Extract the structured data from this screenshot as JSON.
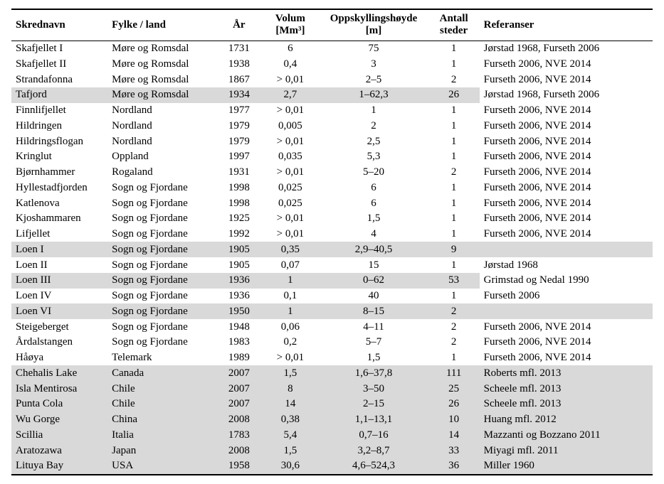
{
  "table": {
    "columns": [
      {
        "key": "name",
        "label": "Skrednavn",
        "sub": "",
        "align": "left",
        "width": "15%"
      },
      {
        "key": "fylke",
        "label": "Fylke / land",
        "sub": "",
        "align": "left",
        "width": "17%"
      },
      {
        "key": "year",
        "label": "År",
        "sub": "",
        "align": "center",
        "width": "7%"
      },
      {
        "key": "vol",
        "label": "Volum",
        "sub": "[Mm³]",
        "align": "center",
        "width": "9%"
      },
      {
        "key": "opp",
        "label": "Oppskyllingshøyde",
        "sub": "[m]",
        "align": "center",
        "width": "17%"
      },
      {
        "key": "ant",
        "label": "Antall",
        "sub": "steder",
        "align": "center",
        "width": "8%"
      },
      {
        "key": "ref",
        "label": "Referanser",
        "sub": "",
        "align": "left",
        "width": "27%"
      }
    ],
    "rows": [
      {
        "name": "Skafjellet I",
        "fylke": "Møre og Romsdal",
        "year": "1731",
        "vol": "6",
        "opp": "75",
        "ant": "1",
        "ref": "Jørstad 1968, Furseth 2006",
        "hl": false,
        "hlref": false
      },
      {
        "name": "Skafjellet II",
        "fylke": "Møre og Romsdal",
        "year": "1938",
        "vol": "0,4",
        "opp": "3",
        "ant": "1",
        "ref": "Furseth 2006, NVE 2014",
        "hl": false,
        "hlref": false
      },
      {
        "name": "Strandafonna",
        "fylke": "Møre og Romsdal",
        "year": "1867",
        "vol": "> 0,01",
        "opp": "2–5",
        "ant": "2",
        "ref": "Furseth 2006, NVE 2014",
        "hl": false,
        "hlref": false
      },
      {
        "name": "Tafjord",
        "fylke": "Møre og Romsdal",
        "year": "1934",
        "vol": "2,7",
        "opp": "1–62,3",
        "ant": "26",
        "ref": "Jørstad 1968, Furseth 2006",
        "hl": true,
        "hlref": false
      },
      {
        "name": "Finnlifjellet",
        "fylke": "Nordland",
        "year": "1977",
        "vol": "> 0,01",
        "opp": "1",
        "ant": "1",
        "ref": "Furseth 2006, NVE 2014",
        "hl": false,
        "hlref": false
      },
      {
        "name": "Hildringen",
        "fylke": "Nordland",
        "year": "1979",
        "vol": "0,005",
        "opp": "2",
        "ant": "1",
        "ref": "Furseth 2006, NVE 2014",
        "hl": false,
        "hlref": false
      },
      {
        "name": "Hildringsflogan",
        "fylke": "Nordland",
        "year": "1979",
        "vol": "> 0,01",
        "opp": "2,5",
        "ant": "1",
        "ref": "Furseth 2006, NVE 2014",
        "hl": false,
        "hlref": false
      },
      {
        "name": "Kringlut",
        "fylke": "Oppland",
        "year": "1997",
        "vol": "0,035",
        "opp": "5,3",
        "ant": "1",
        "ref": "Furseth 2006, NVE 2014",
        "hl": false,
        "hlref": false
      },
      {
        "name": "Bjørnhammer",
        "fylke": "Rogaland",
        "year": "1931",
        "vol": "> 0,01",
        "opp": "5–20",
        "ant": "2",
        "ref": "Furseth 2006, NVE 2014",
        "hl": false,
        "hlref": false
      },
      {
        "name": "Hyllestadfjorden",
        "fylke": "Sogn og Fjordane",
        "year": "1998",
        "vol": "0,025",
        "opp": "6",
        "ant": "1",
        "ref": "Furseth 2006, NVE 2014",
        "hl": false,
        "hlref": false
      },
      {
        "name": "Katlenova",
        "fylke": "Sogn og Fjordane",
        "year": "1998",
        "vol": "0,025",
        "opp": "6",
        "ant": "1",
        "ref": "Furseth 2006, NVE 2014",
        "hl": false,
        "hlref": false
      },
      {
        "name": "Kjoshammaren",
        "fylke": "Sogn og Fjordane",
        "year": "1925",
        "vol": "> 0,01",
        "opp": "1,5",
        "ant": "1",
        "ref": "Furseth 2006, NVE 2014",
        "hl": false,
        "hlref": false
      },
      {
        "name": "Lifjellet",
        "fylke": "Sogn og Fjordane",
        "year": "1992",
        "vol": "> 0,01",
        "opp": "4",
        "ant": "1",
        "ref": "Furseth 2006, NVE 2014",
        "hl": false,
        "hlref": false
      },
      {
        "name": "Loen I",
        "fylke": "Sogn og Fjordane",
        "year": "1905",
        "vol": "0,35",
        "opp": "2,9–40,5",
        "ant": "9",
        "ref": "",
        "hl": true,
        "hlref": true
      },
      {
        "name": "Loen II",
        "fylke": "Sogn og Fjordane",
        "year": "1905",
        "vol": "0,07",
        "opp": "15",
        "ant": "1",
        "ref": "Jørstad 1968",
        "hl": false,
        "hlref": false
      },
      {
        "name": "Loen III",
        "fylke": "Sogn og Fjordane",
        "year": "1936",
        "vol": "1",
        "opp": "0–62",
        "ant": "53",
        "ref": "Grimstad og Nedal 1990",
        "hl": true,
        "hlref": false
      },
      {
        "name": "Loen IV",
        "fylke": "Sogn og Fjordane",
        "year": "1936",
        "vol": "0,1",
        "opp": "40",
        "ant": "1",
        "ref": "Furseth 2006",
        "hl": false,
        "hlref": false
      },
      {
        "name": "Loen VI",
        "fylke": "Sogn og Fjordane",
        "year": "1950",
        "vol": "1",
        "opp": "8–15",
        "ant": "2",
        "ref": "",
        "hl": true,
        "hlref": true
      },
      {
        "name": "Steigeberget",
        "fylke": "Sogn og Fjordane",
        "year": "1948",
        "vol": "0,06",
        "opp": "4–11",
        "ant": "2",
        "ref": "Furseth 2006, NVE 2014",
        "hl": false,
        "hlref": false
      },
      {
        "name": "Årdalstangen",
        "fylke": "Sogn og Fjordane",
        "year": "1983",
        "vol": "0,2",
        "opp": "5–7",
        "ant": "2",
        "ref": "Furseth 2006, NVE 2014",
        "hl": false,
        "hlref": false
      },
      {
        "name": "Håøya",
        "fylke": "Telemark",
        "year": "1989",
        "vol": "> 0,01",
        "opp": "1,5",
        "ant": "1",
        "ref": "Furseth 2006, NVE 2014",
        "hl": false,
        "hlref": false
      },
      {
        "name": "Chehalis Lake",
        "fylke": "Canada",
        "year": "2007",
        "vol": "1,5",
        "opp": "1,6–37,8",
        "ant": "111",
        "ref": "Roberts mfl. 2013",
        "hl": true,
        "hlref": true
      },
      {
        "name": "Isla Mentirosa",
        "fylke": "Chile",
        "year": "2007",
        "vol": "8",
        "opp": "3–50",
        "ant": "25",
        "ref": "Scheele mfl. 2013",
        "hl": true,
        "hlref": true
      },
      {
        "name": "Punta Cola",
        "fylke": "Chile",
        "year": "2007",
        "vol": "14",
        "opp": "2–15",
        "ant": "26",
        "ref": "Scheele mfl. 2013",
        "hl": true,
        "hlref": true
      },
      {
        "name": "Wu Gorge",
        "fylke": "China",
        "year": "2008",
        "vol": "0,38",
        "opp": "1,1–13,1",
        "ant": "10",
        "ref": "Huang mfl. 2012",
        "hl": true,
        "hlref": true
      },
      {
        "name": "Scillia",
        "fylke": "Italia",
        "year": "1783",
        "vol": "5,4",
        "opp": "0,7–16",
        "ant": "14",
        "ref": "Mazzanti og Bozzano 2011",
        "hl": true,
        "hlref": true
      },
      {
        "name": "Aratozawa",
        "fylke": "Japan",
        "year": "2008",
        "vol": "1,5",
        "opp": "3,2–8,7",
        "ant": "33",
        "ref": "Miyagi mfl. 2011",
        "hl": true,
        "hlref": true
      },
      {
        "name": "Lituya Bay",
        "fylke": "USA",
        "year": "1958",
        "vol": "30,6",
        "opp": "4,6–524,3",
        "ant": "36",
        "ref": "Miller 1960",
        "hl": true,
        "hlref": true
      }
    ],
    "highlight_color": "#d9d9d9",
    "background_color": "#ffffff",
    "font_family": "Times New Roman",
    "font_size_pt": 11
  }
}
